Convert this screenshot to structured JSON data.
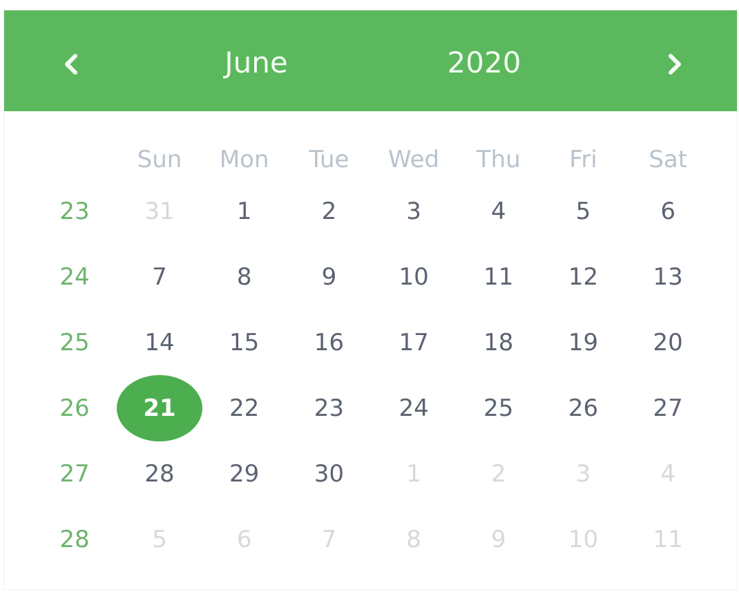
{
  "header": {
    "month": "June",
    "year": "2020"
  },
  "weekdays": [
    "Sun",
    "Mon",
    "Tue",
    "Wed",
    "Thu",
    "Fri",
    "Sat"
  ],
  "weeks": [
    {
      "number": "23",
      "days": [
        {
          "label": "31",
          "other_month": true
        },
        {
          "label": "1"
        },
        {
          "label": "2"
        },
        {
          "label": "3"
        },
        {
          "label": "4"
        },
        {
          "label": "5"
        },
        {
          "label": "6"
        }
      ]
    },
    {
      "number": "24",
      "days": [
        {
          "label": "7"
        },
        {
          "label": "8"
        },
        {
          "label": "9"
        },
        {
          "label": "10"
        },
        {
          "label": "11"
        },
        {
          "label": "12"
        },
        {
          "label": "13"
        }
      ]
    },
    {
      "number": "25",
      "days": [
        {
          "label": "14"
        },
        {
          "label": "15"
        },
        {
          "label": "16"
        },
        {
          "label": "17"
        },
        {
          "label": "18"
        },
        {
          "label": "19"
        },
        {
          "label": "20"
        }
      ]
    },
    {
      "number": "26",
      "days": [
        {
          "label": "21",
          "selected": true
        },
        {
          "label": "22"
        },
        {
          "label": "23"
        },
        {
          "label": "24"
        },
        {
          "label": "25"
        },
        {
          "label": "26"
        },
        {
          "label": "27"
        }
      ]
    },
    {
      "number": "27",
      "days": [
        {
          "label": "28"
        },
        {
          "label": "29"
        },
        {
          "label": "30"
        },
        {
          "label": "1",
          "other_month": true
        },
        {
          "label": "2",
          "other_month": true
        },
        {
          "label": "3",
          "other_month": true
        },
        {
          "label": "4",
          "other_month": true
        }
      ]
    },
    {
      "number": "28",
      "days": [
        {
          "label": "5",
          "other_month": true
        },
        {
          "label": "6",
          "other_month": true
        },
        {
          "label": "7",
          "other_month": true
        },
        {
          "label": "8",
          "other_month": true
        },
        {
          "label": "9",
          "other_month": true
        },
        {
          "label": "10",
          "other_month": true
        },
        {
          "label": "11",
          "other_month": true
        }
      ]
    }
  ]
}
